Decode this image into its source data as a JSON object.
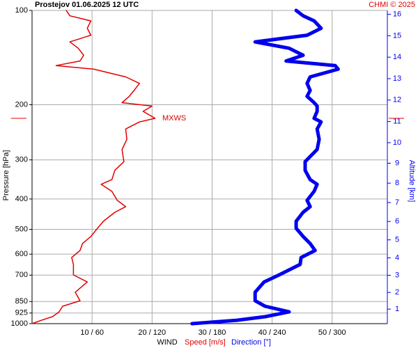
{
  "chart_data": {
    "type": "line",
    "title": "Prostejov    01.06.2025 12 UTC",
    "credit": "CHMI © 2025",
    "ylabel": "Pressure [hPa]",
    "y2label": "Altitude [km]",
    "xlabel": "WIND",
    "xlabel_speed": "Speed [m/s]",
    "xlabel_direction": "Direction [°]",
    "yscale": "log",
    "y2scale": "isa",
    "grid": true,
    "ylim": [
      1000,
      100
    ],
    "yticks": [
      100,
      200,
      300,
      400,
      500,
      600,
      700,
      850,
      925,
      1000
    ],
    "y2ticks": [
      1,
      2,
      3,
      4,
      5,
      6,
      7,
      8,
      9,
      10,
      11,
      12,
      13,
      14,
      15,
      16
    ],
    "xlim": [
      0,
      59.2
    ],
    "x2lim": [
      0,
      355.2
    ],
    "xticks": [
      {
        "value": 10,
        "label": "10 / 60"
      },
      {
        "value": 20,
        "label": "20 / 120"
      },
      {
        "value": 30,
        "label": "30 / 180"
      },
      {
        "value": 40,
        "label": "40 / 240"
      },
      {
        "value": 50,
        "label": "50 / 300"
      }
    ],
    "annotation": {
      "text": "MXWS",
      "pressure": 221
    },
    "pressure": [
      1000,
      975,
      950,
      917,
      880,
      845,
      794,
      736,
      699,
      647,
      615,
      584,
      555,
      527,
      496,
      471,
      441,
      423,
      404,
      378,
      359,
      347,
      324,
      304,
      278,
      258,
      239,
      227,
      221,
      210,
      202,
      197,
      188,
      180,
      171,
      163,
      154,
      150,
      145,
      139,
      132,
      126,
      120,
      114,
      108,
      104,
      100
    ],
    "series": [
      {
        "name": "Speed [m/s]",
        "color": "#e00000",
        "axis": "x",
        "values": [
          0,
          1.6,
          3.4,
          4.5,
          5.1,
          8,
          7.2,
          9.2,
          6.9,
          6.9,
          6.6,
          8,
          8.4,
          9.8,
          10.9,
          11.9,
          13.8,
          15.6,
          14.2,
          13.3,
          11.5,
          13.3,
          13.8,
          15.3,
          15,
          15.8,
          15.6,
          17.9,
          20.5,
          18.5,
          20,
          15,
          16.2,
          17,
          17.9,
          15.6,
          10.3,
          4,
          8,
          8.6,
          7.7,
          6.3,
          9.8,
          9.2,
          9.8,
          6.3,
          5.7
        ]
      },
      {
        "name": "Direction [°]",
        "color": "#0000ee",
        "axis": "x2",
        "values": [
          160,
          205,
          233,
          257,
          233,
          223,
          223,
          232,
          247,
          268,
          269,
          283,
          278,
          271,
          264,
          264,
          271,
          278,
          275,
          282,
          285,
          278,
          273,
          273,
          285,
          287,
          285,
          289,
          282,
          285,
          285,
          282,
          275,
          278,
          275,
          278,
          306,
          303,
          254,
          271,
          257,
          223,
          275,
          289,
          282,
          271,
          264
        ]
      }
    ]
  }
}
